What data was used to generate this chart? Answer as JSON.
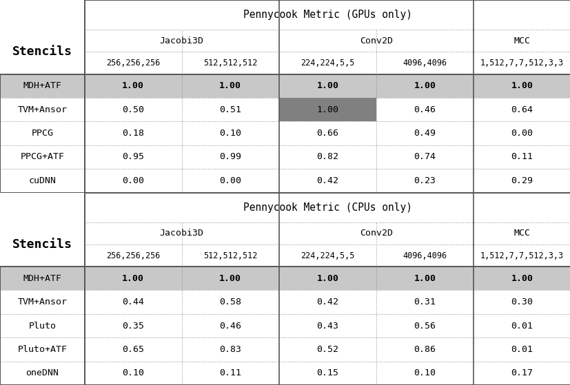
{
  "gpu_title": "Pennycook Metric (GPUs only)",
  "cpu_title": "Pennycook Metric (CPUs only)",
  "col_groups": [
    "Jacobi3D",
    "Conv2D",
    "MCC"
  ],
  "col_group_spans": [
    2,
    2,
    1
  ],
  "subcols": [
    "256,256,256",
    "512,512,512",
    "224,224,5,5",
    "4096,4096",
    "1,512,7,7,512,3,3"
  ],
  "gpu_rows": {
    "labels": [
      "MDH+ATF",
      "TVM+Ansor",
      "PPCG",
      "PPCG+ATF",
      "cuDNN"
    ],
    "values": [
      [
        1.0,
        1.0,
        1.0,
        1.0,
        1.0
      ],
      [
        0.5,
        0.51,
        1.0,
        0.46,
        0.64
      ],
      [
        0.18,
        0.1,
        0.66,
        0.49,
        0.0
      ],
      [
        0.95,
        0.99,
        0.82,
        0.74,
        0.11
      ],
      [
        0.0,
        0.0,
        0.42,
        0.23,
        0.29
      ]
    ]
  },
  "cpu_rows": {
    "labels": [
      "MDH+ATF",
      "TVM+Ansor",
      "Pluto",
      "Pluto+ATF",
      "oneDNN"
    ],
    "values": [
      [
        1.0,
        1.0,
        1.0,
        1.0,
        1.0
      ],
      [
        0.44,
        0.58,
        0.42,
        0.31,
        0.3
      ],
      [
        0.35,
        0.46,
        0.43,
        0.56,
        0.01
      ],
      [
        0.65,
        0.83,
        0.52,
        0.86,
        0.01
      ],
      [
        0.1,
        0.11,
        0.15,
        0.1,
        0.17
      ]
    ]
  },
  "highlight_mdhatf_color": "#c8c8c8",
  "highlight_special_color": "#808080",
  "bg_color": "#ffffff",
  "line_color": "#555555",
  "solid_color": "#555555",
  "dotted_color": "#888888",
  "title_fontsize": 10.5,
  "header_fontsize": 9.5,
  "cell_fontsize": 9.5,
  "stencils_fontsize": 13
}
